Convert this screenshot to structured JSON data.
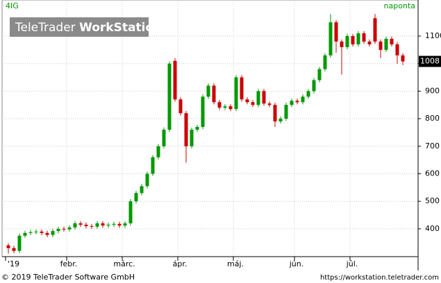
{
  "chart_data": {
    "type": "candlestick",
    "symbol": "4IG",
    "interval": "naponta",
    "watermark": [
      "TeleTrader",
      "WorkStation"
    ],
    "footer_left": "© 2019 TeleTrader Software GmbH",
    "footer_right": "https://workstation.teletrader.com",
    "up_color": "#009900",
    "down_color": "#cc0000",
    "grid": true,
    "ylim": [
      299,
      1231
    ],
    "yticks": [
      400,
      500,
      600,
      700,
      800,
      900,
      1000,
      1100
    ],
    "categories": [
      "'19",
      null,
      null,
      null,
      null,
      null,
      null,
      null,
      null,
      null,
      null,
      "febr.",
      null,
      null,
      null,
      null,
      null,
      null,
      null,
      null,
      null,
      "márc.",
      null,
      null,
      null,
      null,
      null,
      null,
      null,
      null,
      null,
      "ápr.",
      null,
      null,
      null,
      null,
      null,
      null,
      null,
      null,
      null,
      "máj.",
      null,
      null,
      null,
      null,
      null,
      null,
      null,
      null,
      null,
      null,
      "jún.",
      null,
      null,
      null,
      null,
      null,
      null,
      null,
      null,
      null,
      "júl.",
      null,
      null,
      null,
      null,
      null,
      null,
      null,
      null,
      null
    ],
    "open": [
      340,
      330,
      320,
      375,
      385,
      388,
      390,
      385,
      378,
      392,
      400,
      398,
      405,
      420,
      415,
      410,
      408,
      420,
      412,
      415,
      418,
      412,
      420,
      500,
      530,
      555,
      600,
      660,
      700,
      760,
      1010,
      870,
      820,
      700,
      760,
      770,
      880,
      920,
      860,
      840,
      845,
      835,
      950,
      870,
      860,
      850,
      900,
      855,
      850,
      790,
      800,
      850,
      865,
      860,
      880,
      900,
      940,
      980,
      1030,
      1150,
      1080,
      1060,
      1100,
      1070,
      1110,
      1080,
      1165,
      1080,
      1050,
      1090,
      1070,
      1030
    ],
    "high": [
      348,
      338,
      383,
      393,
      396,
      398,
      398,
      393,
      400,
      408,
      408,
      413,
      428,
      428,
      423,
      418,
      428,
      428,
      423,
      426,
      426,
      428,
      508,
      538,
      563,
      608,
      668,
      708,
      768,
      1008,
      1020,
      878,
      828,
      768,
      778,
      888,
      928,
      928,
      868,
      853,
      853,
      958,
      958,
      878,
      868,
      908,
      908,
      863,
      858,
      808,
      858,
      873,
      873,
      888,
      908,
      948,
      988,
      1038,
      1180,
      1158,
      1088,
      1108,
      1108,
      1118,
      1118,
      1088,
      1180,
      1088,
      1098,
      1098,
      1078,
      1038
    ],
    "low": [
      310,
      312,
      312,
      367,
      377,
      380,
      377,
      370,
      370,
      384,
      390,
      390,
      397,
      407,
      402,
      400,
      400,
      404,
      404,
      407,
      404,
      404,
      412,
      492,
      522,
      547,
      592,
      652,
      692,
      752,
      862,
      812,
      640,
      692,
      752,
      762,
      872,
      852,
      832,
      832,
      827,
      827,
      862,
      852,
      842,
      842,
      847,
      842,
      770,
      782,
      792,
      842,
      852,
      852,
      872,
      892,
      932,
      972,
      1022,
      1040,
      960,
      1052,
      1062,
      1062,
      1072,
      1062,
      1072,
      1020,
      1042,
      1062,
      1000,
      995
    ],
    "close": [
      330,
      320,
      375,
      385,
      388,
      390,
      385,
      378,
      392,
      400,
      398,
      405,
      420,
      415,
      410,
      408,
      420,
      412,
      415,
      418,
      412,
      420,
      500,
      530,
      555,
      600,
      660,
      700,
      760,
      1000,
      870,
      820,
      700,
      760,
      770,
      880,
      920,
      860,
      840,
      845,
      835,
      950,
      870,
      860,
      850,
      900,
      855,
      850,
      790,
      800,
      850,
      865,
      860,
      880,
      900,
      940,
      980,
      1030,
      1150,
      1080,
      1060,
      1100,
      1070,
      1110,
      1080,
      1070,
      1080,
      1050,
      1090,
      1070,
      1030,
      1008
    ]
  }
}
